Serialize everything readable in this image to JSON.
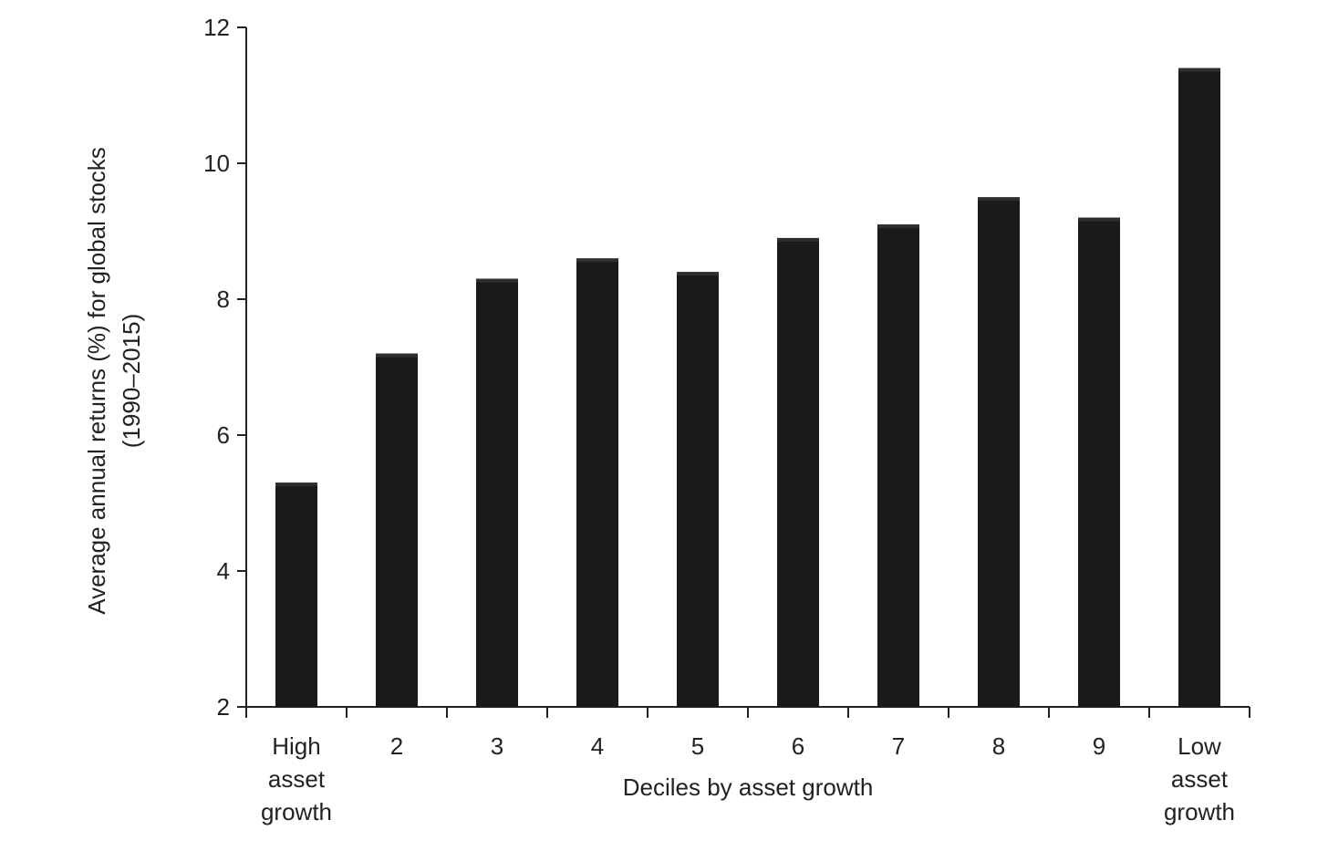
{
  "chart_data": {
    "type": "bar",
    "categories": [
      [
        "High",
        "asset",
        "growth"
      ],
      [
        "2"
      ],
      [
        "3"
      ],
      [
        "4"
      ],
      [
        "5"
      ],
      [
        "6"
      ],
      [
        "7"
      ],
      [
        "8"
      ],
      [
        "9"
      ],
      [
        "Low",
        "asset",
        "growth"
      ]
    ],
    "values": [
      5.3,
      7.2,
      8.3,
      8.6,
      8.4,
      8.9,
      9.1,
      9.5,
      9.2,
      11.4
    ],
    "xlabel": "Deciles by asset growth",
    "ylabel": [
      "Average annual returns (%) for global stocks",
      "(1990–2015)"
    ],
    "ylim": [
      2,
      12
    ],
    "yticks": [
      2,
      4,
      6,
      8,
      10,
      12
    ],
    "bar_color": "#1a1a1a",
    "axis_color": "#222222",
    "grid": false,
    "legend": "none"
  }
}
